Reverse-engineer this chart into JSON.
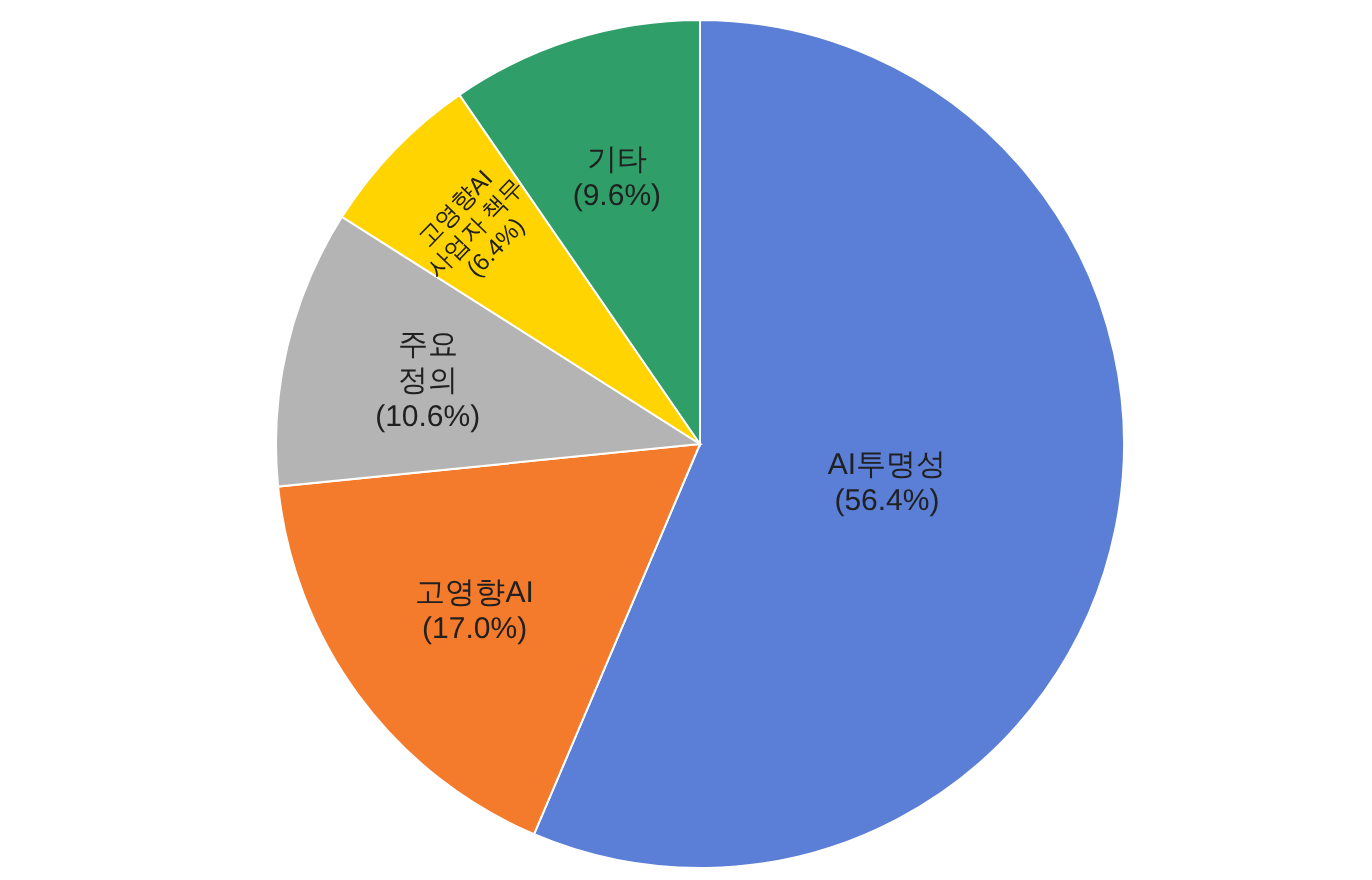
{
  "chart_data": {
    "type": "pie",
    "categories": [
      "AI투명성",
      "고영향AI",
      "주요\n정의",
      "고영향AI\n사업자 책무",
      "기타"
    ],
    "values": [
      56.4,
      17.0,
      10.6,
      6.4,
      9.6
    ],
    "value_labels": [
      "(56.4%)",
      "(17.0%)",
      "(10.6%)",
      "(6.4%)",
      "(9.6%)"
    ],
    "colors": [
      "#5b7fd6",
      "#f47a2c",
      "#b4b4b4",
      "#ffd400",
      "#2f9e68"
    ],
    "legend": false
  }
}
